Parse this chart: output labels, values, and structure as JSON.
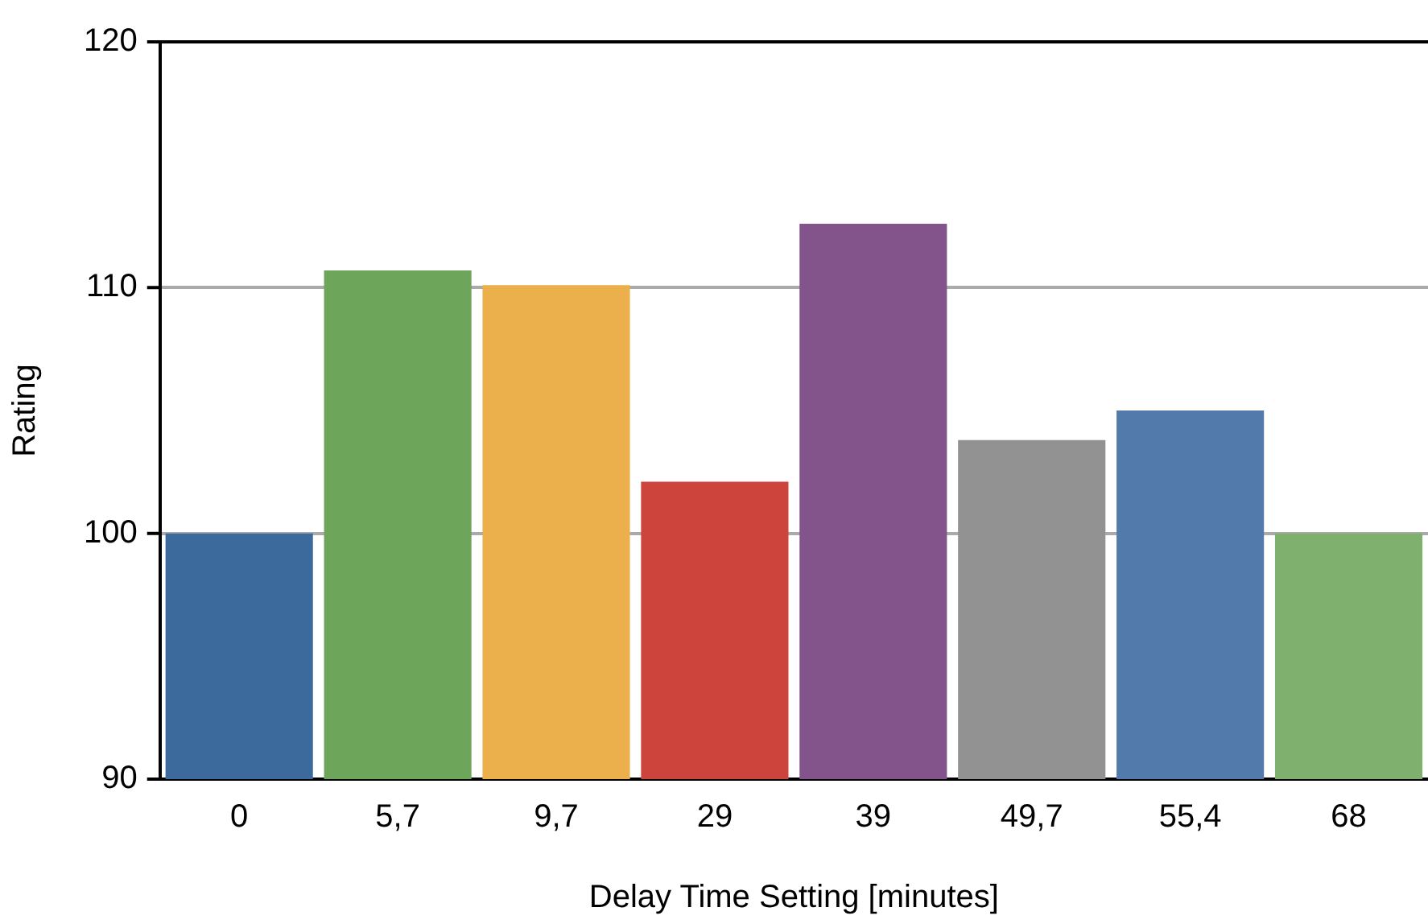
{
  "chart_data": {
    "type": "bar",
    "xlabel": "Delay Time Setting [minutes]",
    "ylabel": "Rating",
    "categories": [
      "0",
      "5,7",
      "9,7",
      "29",
      "39",
      "49,7",
      "55,4",
      "68"
    ],
    "values": [
      100,
      110.7,
      110.1,
      102.1,
      112.6,
      103.8,
      105.0,
      100
    ],
    "colors": [
      "#3d6a9c",
      "#6da55a",
      "#ebaf4b",
      "#cc443c",
      "#83538c",
      "#919291",
      "#527bab",
      "#80b06e"
    ],
    "ylim": [
      90,
      120
    ],
    "yticks": [
      90,
      100,
      110,
      120
    ],
    "grid": "y",
    "legend": false
  }
}
